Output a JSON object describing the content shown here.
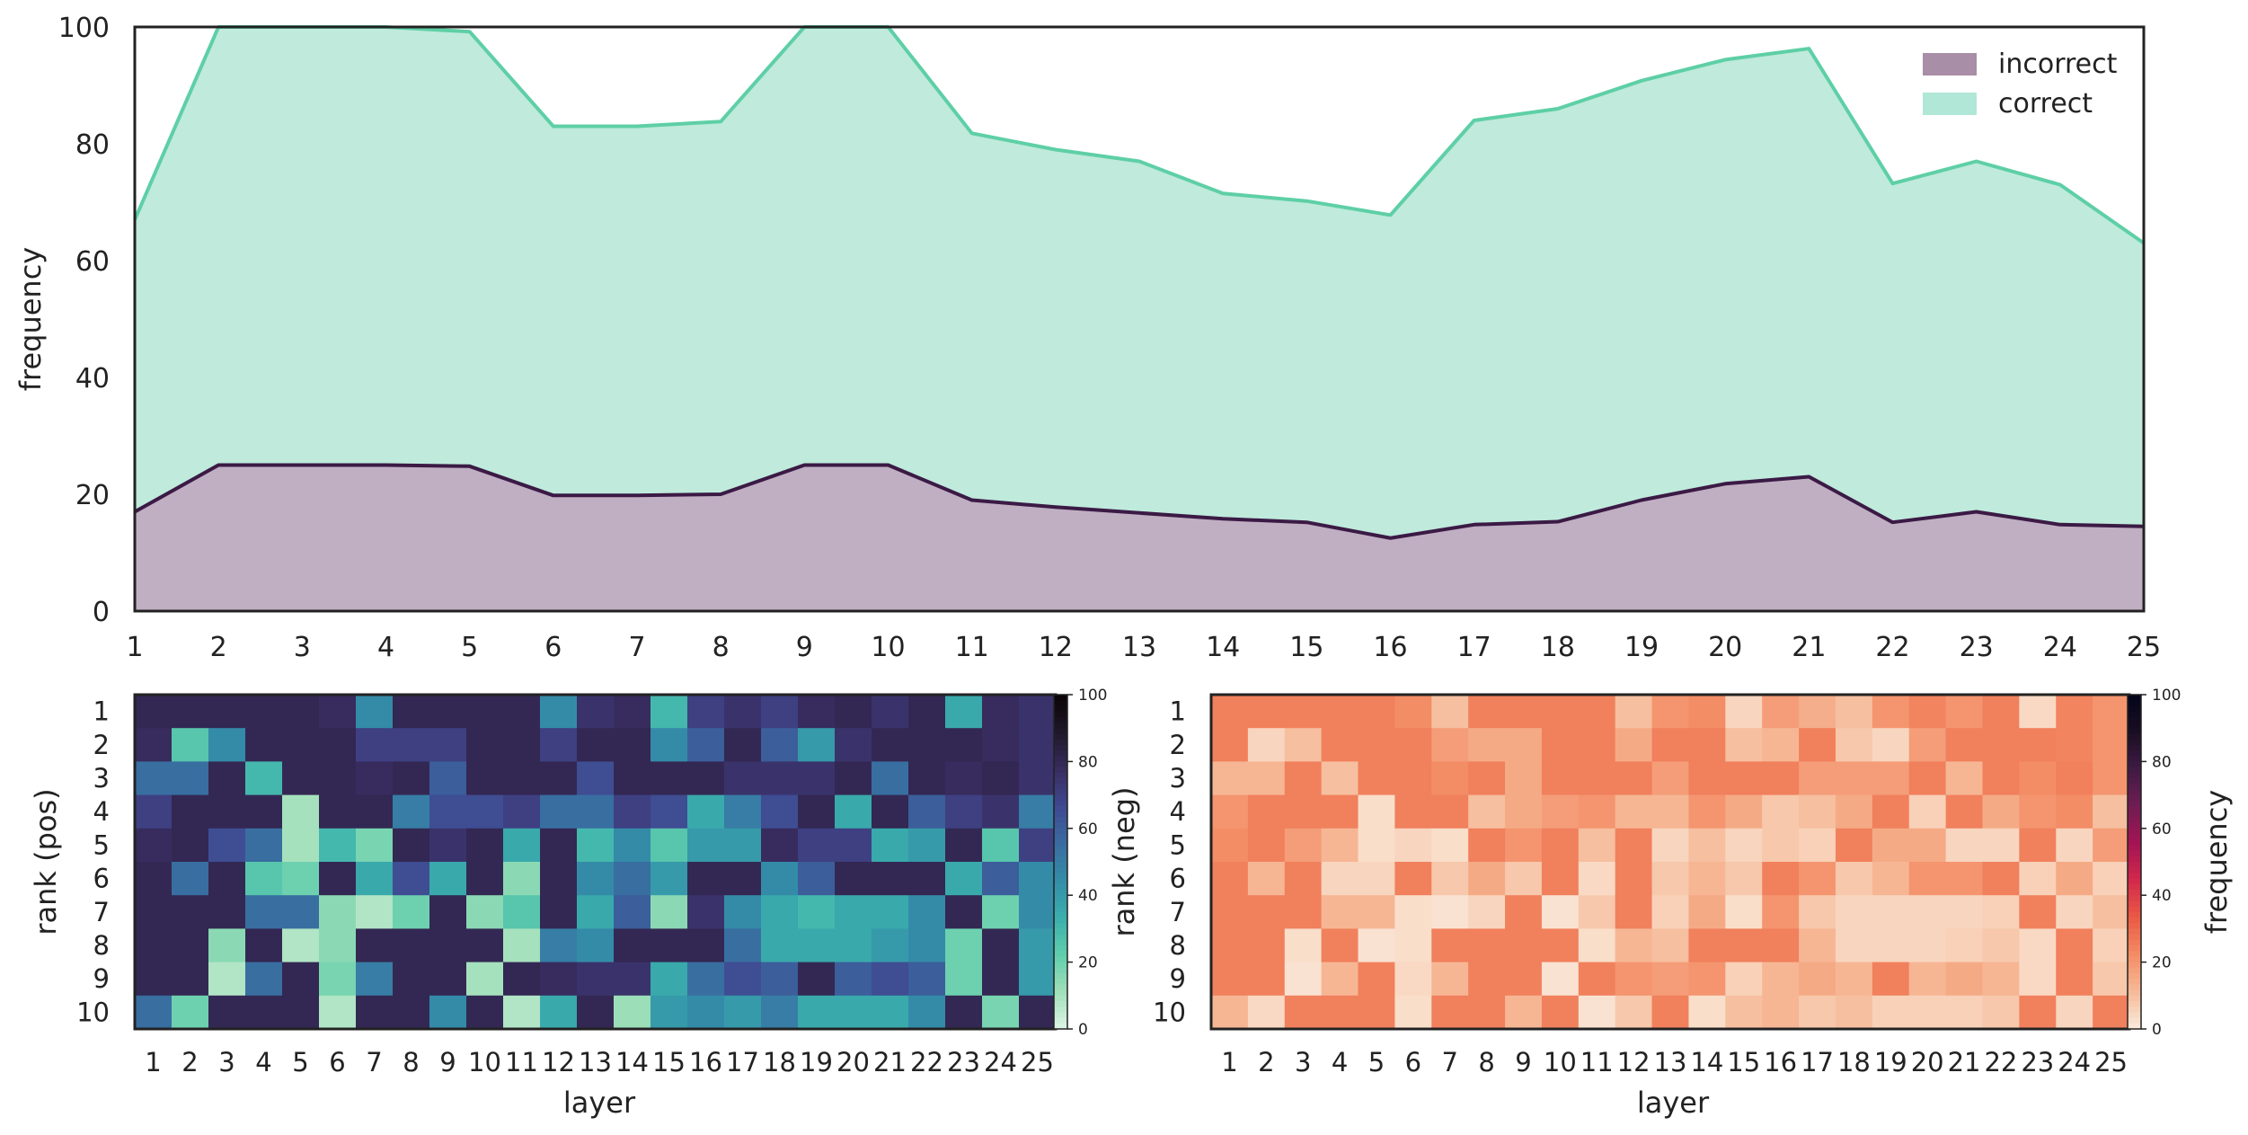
{
  "chart_data": [
    {
      "type": "area",
      "title": "",
      "xlabel": "",
      "ylabel": "frequency",
      "x": [
        1,
        2,
        3,
        4,
        5,
        6,
        7,
        8,
        9,
        10,
        11,
        12,
        13,
        14,
        15,
        16,
        17,
        18,
        19,
        20,
        21,
        22,
        23,
        24,
        25
      ],
      "ylim": [
        0,
        100
      ],
      "yticks": [
        "0",
        "20",
        "40",
        "60",
        "80",
        "100"
      ],
      "legend_position": "top-right",
      "series": [
        {
          "name": "incorrect",
          "color": "#3b1a45",
          "fill": "#c0aec2",
          "values": [
            17,
            25,
            25,
            25,
            24.8,
            19.8,
            19.8,
            20,
            25,
            25,
            19,
            17.8,
            16.8,
            15.8,
            15.2,
            12.5,
            14.8,
            15.3,
            19,
            21.8,
            23,
            15.2,
            17,
            14.8,
            14.5
          ]
        },
        {
          "name": "correct",
          "color": "#5ecfa6",
          "fill": "#bfeadc",
          "values": [
            67,
            100,
            100,
            100,
            99.2,
            83,
            83,
            83.8,
            100,
            100,
            81.8,
            79,
            77,
            71.5,
            70.2,
            67.8,
            84,
            86,
            90.8,
            94.4,
            96.3,
            73.2,
            77,
            73,
            63
          ]
        }
      ]
    },
    {
      "type": "heatmap",
      "xlabel": "layer",
      "ylabel": "rank (pos)",
      "colorbar_label": "",
      "colorbar_ticks": [
        "0",
        "20",
        "40",
        "60",
        "80",
        "100"
      ],
      "x": [
        "1",
        "2",
        "3",
        "4",
        "5",
        "6",
        "7",
        "8",
        "9",
        "10",
        "11",
        "12",
        "13",
        "14",
        "15",
        "16",
        "17",
        "18",
        "19",
        "20",
        "21",
        "22",
        "23",
        "24",
        "25"
      ],
      "y": [
        "1",
        "2",
        "3",
        "4",
        "5",
        "6",
        "7",
        "8",
        "9",
        "10"
      ],
      "zlim": [
        0,
        100
      ],
      "colormap": "mako_r",
      "values": [
        [
          80,
          80,
          80,
          80,
          80,
          78,
          45,
          80,
          80,
          80,
          80,
          45,
          75,
          78,
          30,
          70,
          75,
          70,
          78,
          80,
          75,
          80,
          35,
          78,
          75
        ],
        [
          78,
          25,
          45,
          80,
          80,
          80,
          70,
          70,
          70,
          80,
          80,
          70,
          80,
          80,
          45,
          60,
          80,
          60,
          40,
          75,
          80,
          80,
          80,
          78,
          75
        ],
        [
          55,
          55,
          80,
          30,
          80,
          80,
          78,
          80,
          60,
          80,
          80,
          80,
          65,
          80,
          80,
          80,
          75,
          75,
          75,
          80,
          55,
          80,
          78,
          80,
          75
        ],
        [
          70,
          80,
          80,
          80,
          10,
          80,
          80,
          50,
          65,
          65,
          70,
          55,
          55,
          70,
          65,
          35,
          50,
          65,
          80,
          35,
          80,
          60,
          70,
          75,
          50
        ],
        [
          78,
          80,
          65,
          55,
          10,
          30,
          18,
          80,
          75,
          80,
          35,
          80,
          30,
          45,
          25,
          40,
          40,
          78,
          70,
          70,
          35,
          40,
          80,
          25,
          70
        ],
        [
          80,
          55,
          80,
          25,
          20,
          80,
          35,
          65,
          35,
          80,
          15,
          80,
          45,
          55,
          40,
          80,
          80,
          45,
          60,
          80,
          80,
          80,
          35,
          60,
          45
        ],
        [
          80,
          80,
          80,
          55,
          55,
          15,
          8,
          20,
          80,
          15,
          25,
          80,
          35,
          60,
          15,
          75,
          45,
          35,
          30,
          35,
          35,
          45,
          80,
          20,
          45
        ],
        [
          80,
          80,
          15,
          80,
          8,
          15,
          80,
          80,
          80,
          80,
          10,
          50,
          45,
          80,
          80,
          80,
          55,
          35,
          35,
          35,
          40,
          45,
          20,
          80,
          40
        ],
        [
          80,
          80,
          8,
          55,
          80,
          18,
          50,
          80,
          80,
          10,
          80,
          78,
          75,
          75,
          35,
          55,
          65,
          60,
          80,
          60,
          65,
          60,
          20,
          80,
          40
        ],
        [
          55,
          20,
          80,
          80,
          80,
          8,
          80,
          80,
          45,
          80,
          8,
          35,
          80,
          12,
          40,
          45,
          40,
          50,
          35,
          35,
          35,
          45,
          80,
          18,
          80
        ]
      ]
    },
    {
      "type": "heatmap",
      "xlabel": "layer",
      "ylabel": "rank (neg)",
      "colorbar_label": "frequency",
      "colorbar_ticks": [
        "0",
        "20",
        "40",
        "60",
        "80",
        "100"
      ],
      "x": [
        "1",
        "2",
        "3",
        "4",
        "5",
        "6",
        "7",
        "8",
        "9",
        "10",
        "11",
        "12",
        "13",
        "14",
        "15",
        "16",
        "17",
        "18",
        "19",
        "20",
        "21",
        "22",
        "23",
        "24",
        "25"
      ],
      "y": [
        "1",
        "2",
        "3",
        "4",
        "5",
        "6",
        "7",
        "8",
        "9",
        "10"
      ],
      "zlim": [
        0,
        100
      ],
      "colormap": "rocket_r",
      "values": [
        [
          25,
          25,
          25,
          25,
          25,
          22,
          10,
          25,
          25,
          25,
          25,
          10,
          20,
          22,
          5,
          18,
          14,
          10,
          20,
          24,
          20,
          25,
          4,
          24,
          20
        ],
        [
          25,
          5,
          10,
          25,
          25,
          25,
          18,
          15,
          15,
          25,
          25,
          15,
          25,
          25,
          10,
          12,
          25,
          8,
          5,
          18,
          25,
          25,
          25,
          24,
          20
        ],
        [
          12,
          12,
          25,
          10,
          25,
          25,
          22,
          25,
          15,
          25,
          25,
          25,
          18,
          25,
          25,
          25,
          18,
          18,
          18,
          25,
          12,
          25,
          22,
          25,
          20
        ],
        [
          20,
          25,
          25,
          25,
          3,
          25,
          25,
          10,
          15,
          18,
          20,
          12,
          12,
          20,
          15,
          8,
          10,
          15,
          25,
          6,
          25,
          15,
          20,
          22,
          10
        ],
        [
          22,
          25,
          18,
          12,
          3,
          5,
          3,
          25,
          20,
          25,
          10,
          25,
          5,
          10,
          5,
          8,
          6,
          25,
          15,
          15,
          5,
          5,
          25,
          5,
          18
        ],
        [
          25,
          12,
          25,
          5,
          5,
          25,
          8,
          15,
          8,
          25,
          4,
          25,
          8,
          12,
          8,
          25,
          20,
          8,
          12,
          20,
          20,
          25,
          6,
          15,
          6
        ],
        [
          25,
          25,
          25,
          12,
          12,
          3,
          2,
          5,
          25,
          2,
          8,
          25,
          6,
          15,
          3,
          20,
          8,
          5,
          5,
          5,
          5,
          6,
          25,
          5,
          10
        ],
        [
          25,
          25,
          3,
          25,
          2,
          3,
          25,
          25,
          25,
          25,
          3,
          12,
          10,
          25,
          25,
          25,
          12,
          5,
          5,
          5,
          6,
          8,
          4,
          25,
          6
        ],
        [
          25,
          25,
          2,
          12,
          25,
          4,
          12,
          25,
          25,
          2,
          25,
          20,
          18,
          20,
          6,
          12,
          15,
          12,
          25,
          12,
          15,
          12,
          4,
          25,
          8
        ],
        [
          12,
          4,
          25,
          25,
          25,
          3,
          25,
          25,
          12,
          25,
          2,
          8,
          25,
          3,
          10,
          12,
          8,
          10,
          6,
          6,
          6,
          8,
          25,
          5,
          25
        ]
      ]
    }
  ]
}
